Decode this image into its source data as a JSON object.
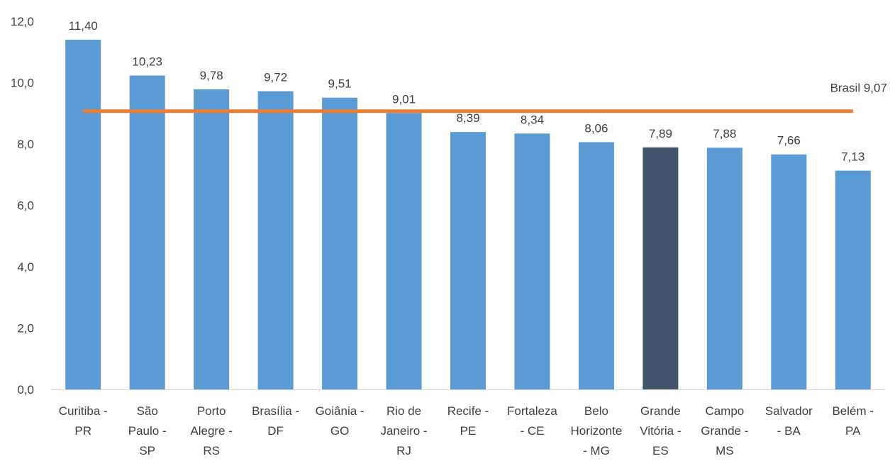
{
  "chart_data": {
    "type": "bar",
    "categories": [
      "Curitiba - PR",
      "São Paulo - SP",
      "Porto Alegre - RS",
      "Brasília - DF",
      "Goiânia - GO",
      "Rio de Janeiro - RJ",
      "Recife - PE",
      "Fortaleza - CE",
      "Belo Horizonte - MG",
      "Grande Vitória - ES",
      "Campo Grande - MS",
      "Salvador - BA",
      "Belém - PA"
    ],
    "category_lines": [
      [
        "Curitiba -",
        "PR"
      ],
      [
        "São",
        "Paulo -",
        "SP"
      ],
      [
        "Porto",
        "Alegre -",
        "RS"
      ],
      [
        "Brasília -",
        "DF"
      ],
      [
        "Goiânia -",
        "GO"
      ],
      [
        "Rio de",
        "Janeiro -",
        "RJ"
      ],
      [
        "Recife -",
        "PE"
      ],
      [
        "Fortaleza",
        "- CE"
      ],
      [
        "Belo",
        "Horizonte",
        "- MG"
      ],
      [
        "Grande",
        "Vitória -",
        "ES"
      ],
      [
        "Campo",
        "Grande -",
        "MS"
      ],
      [
        "Salvador",
        "- BA"
      ],
      [
        "Belém -",
        "PA"
      ]
    ],
    "values": [
      11.4,
      10.23,
      9.78,
      9.72,
      9.51,
      9.01,
      8.39,
      8.34,
      8.06,
      7.89,
      7.88,
      7.66,
      7.13
    ],
    "value_labels": [
      "11,40",
      "10,23",
      "9,78",
      "9,72",
      "9,51",
      "9,01",
      "8,39",
      "8,34",
      "8,06",
      "7,89",
      "7,88",
      "7,66",
      "7,13"
    ],
    "highlight_index": 9,
    "ylim": [
      0,
      12
    ],
    "yticks": [
      0,
      2,
      4,
      6,
      8,
      10,
      12
    ],
    "ytick_labels": [
      "0,0",
      "2,0",
      "4,0",
      "6,0",
      "8,0",
      "10,0",
      "12,0"
    ],
    "reference_line": {
      "value": 9.07,
      "label": "Brasil 9,07"
    },
    "grid": false,
    "legend": "none",
    "colors": {
      "bar": "#5b9bd5",
      "highlight": "#44546a",
      "reference_line": "#ed7d31",
      "axis": "#d9d9d9",
      "text": "#404040"
    },
    "title": "",
    "xlabel": "",
    "ylabel": ""
  }
}
